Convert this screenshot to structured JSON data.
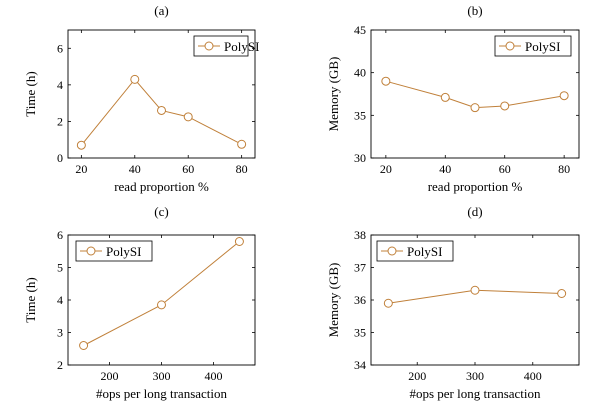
{
  "chart_data": [
    {
      "panel": "(a)",
      "type": "line",
      "xlabel": "read proportion %",
      "ylabel": "Time (h)",
      "xlim": [
        15,
        85
      ],
      "ylim": [
        0,
        7
      ],
      "xticks": [
        20,
        40,
        60,
        80
      ],
      "yticks": [
        0,
        2,
        4,
        6
      ],
      "grid": false,
      "legend_position": "top-right",
      "series": [
        {
          "name": "PolySI",
          "color": "#c0803a",
          "marker": "open-circle",
          "x": [
            20,
            40,
            50,
            60,
            80
          ],
          "values": [
            0.7,
            4.3,
            2.6,
            2.25,
            0.75
          ]
        }
      ]
    },
    {
      "panel": "(b)",
      "type": "line",
      "xlabel": "read proportion %",
      "ylabel": "Memory (GB)",
      "xlim": [
        15,
        85
      ],
      "ylim": [
        30,
        45
      ],
      "xticks": [
        20,
        40,
        60,
        80
      ],
      "yticks": [
        30,
        35,
        40,
        45
      ],
      "grid": false,
      "legend_position": "top-right",
      "series": [
        {
          "name": "PolySI",
          "color": "#c0803a",
          "marker": "open-circle",
          "x": [
            20,
            40,
            50,
            60,
            80
          ],
          "values": [
            39.0,
            37.1,
            35.9,
            36.1,
            37.3
          ]
        }
      ]
    },
    {
      "panel": "(c)",
      "type": "line",
      "xlabel": "#ops per long transaction",
      "ylabel": "Time (h)",
      "xlim": [
        120,
        480
      ],
      "ylim": [
        2,
        6
      ],
      "xticks": [
        200,
        300,
        400
      ],
      "yticks": [
        2,
        3,
        4,
        5,
        6
      ],
      "grid": false,
      "legend_position": "top-left",
      "series": [
        {
          "name": "PolySI",
          "color": "#c0803a",
          "marker": "open-circle",
          "x": [
            150,
            300,
            450
          ],
          "values": [
            2.6,
            3.85,
            5.8
          ]
        }
      ]
    },
    {
      "panel": "(d)",
      "type": "line",
      "xlabel": "#ops per long transaction",
      "ylabel": "Memory (GB)",
      "xlim": [
        120,
        480
      ],
      "ylim": [
        34,
        38
      ],
      "xticks": [
        200,
        300,
        400
      ],
      "yticks": [
        34,
        35,
        36,
        37,
        38
      ],
      "grid": false,
      "legend_position": "top-left",
      "series": [
        {
          "name": "PolySI",
          "color": "#c0803a",
          "marker": "open-circle",
          "x": [
            150,
            300,
            450
          ],
          "values": [
            35.9,
            36.3,
            36.2
          ]
        }
      ]
    }
  ]
}
